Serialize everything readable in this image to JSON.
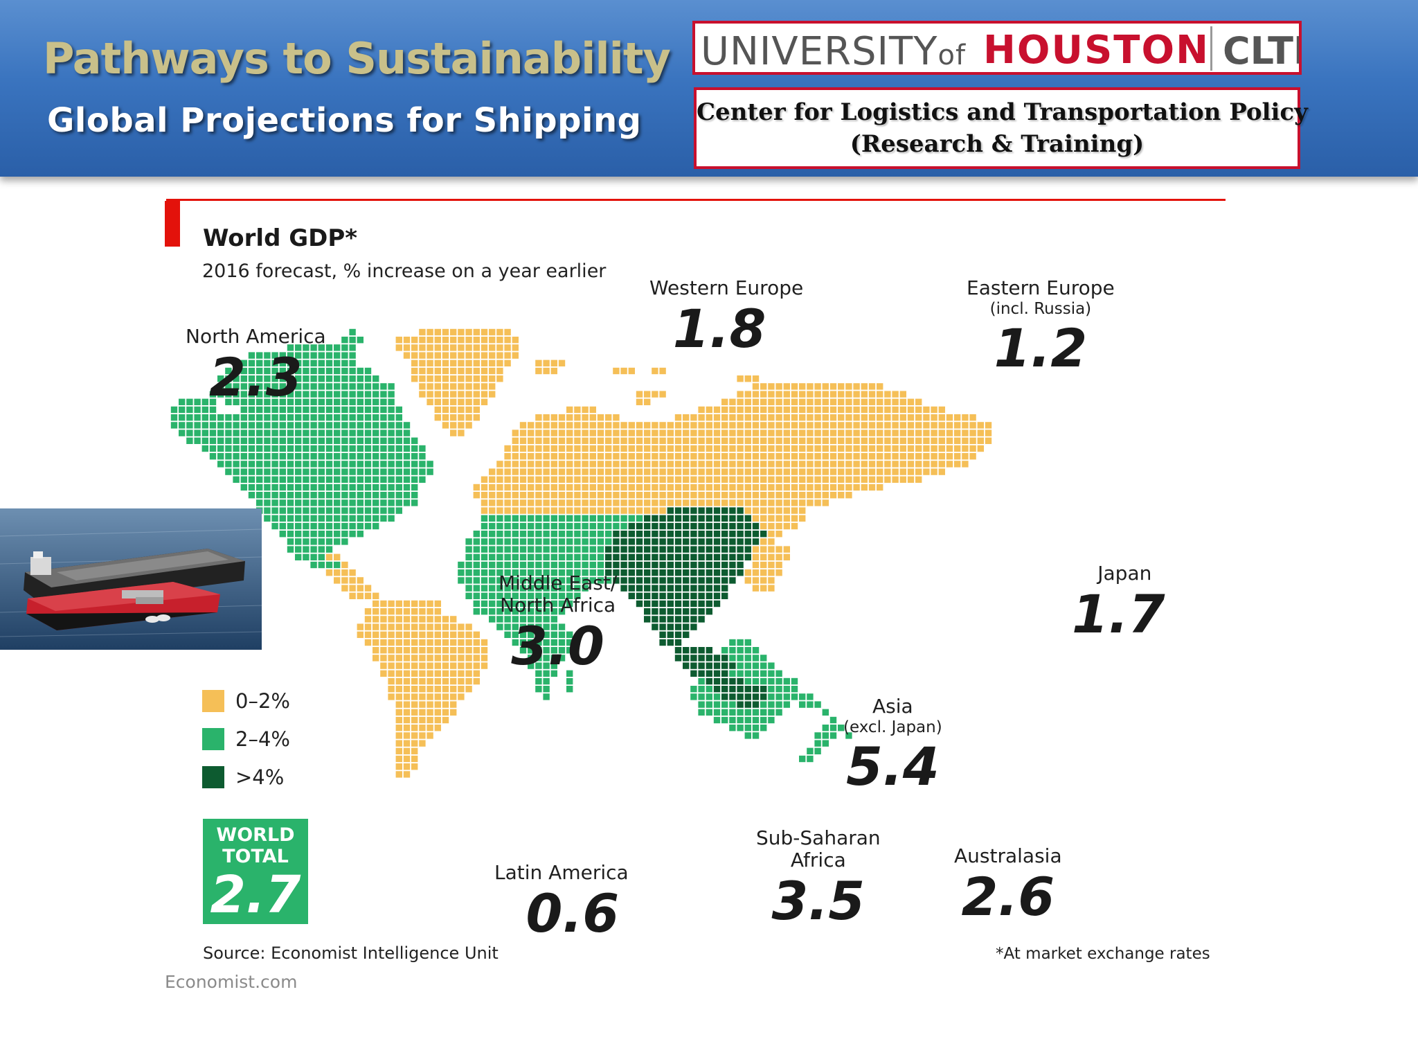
{
  "header": {
    "title": "Pathways to Sustainability",
    "subtitle": "Global Projections for Shipping",
    "logo": {
      "university": "UNIVERSITY",
      "of": "of",
      "houston": "HOUSTON",
      "cltp": "CLTP"
    },
    "center_line1": "Center for Logistics and Transportation Policy",
    "center_line2": "(Research & Training)"
  },
  "map": {
    "title": "World GDP*",
    "subtitle": "2016 forecast, % increase on a year earlier",
    "legend": [
      {
        "label": "0–2%",
        "color": "#f5bf57"
      },
      {
        "label": "2–4%",
        "color": "#2ab36b"
      },
      {
        "label": ">4%",
        "color": "#0d5b30"
      }
    ],
    "regions": {
      "north_america": {
        "name": "North America",
        "value": "2.3"
      },
      "western_europe": {
        "name": "Western Europe",
        "value": "1.8"
      },
      "eastern_europe": {
        "name": "Eastern Europe",
        "note": "(incl. Russia)",
        "value": "1.2"
      },
      "japan": {
        "name": "Japan",
        "value": "1.7"
      },
      "mena": {
        "name_line1": "Middle East/",
        "name_line2": "North Africa",
        "value": "3.0"
      },
      "asia": {
        "name": "Asia",
        "note": "(excl. Japan)",
        "value": "5.4"
      },
      "latin_america": {
        "name": "Latin America",
        "value": "0.6"
      },
      "sub_saharan_africa": {
        "name_line1": "Sub-Saharan",
        "name_line2": "Africa",
        "value": "3.5"
      },
      "australasia": {
        "name": "Australasia",
        "value": "2.6"
      }
    },
    "world_total": {
      "line1": "WORLD",
      "line2": "TOTAL",
      "value": "2.7"
    },
    "source": "Source: Economist Intelligence Unit",
    "credit": "Economist.com",
    "footnote": "*At market exchange rates"
  },
  "colors": {
    "yellow": "#f5bf57",
    "green": "#2ab36b",
    "dark_green": "#0d5b30",
    "economist_red": "#e3120b",
    "uh_red": "#c8102e"
  }
}
